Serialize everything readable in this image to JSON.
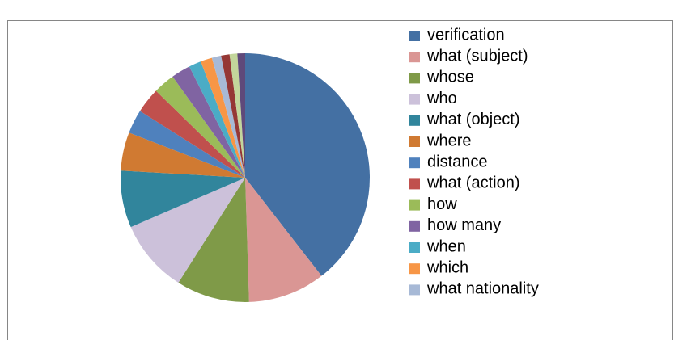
{
  "chart_data": {
    "type": "pie",
    "categories": [
      "verification",
      "what (subject)",
      "whose",
      "who",
      "what (object)",
      "where",
      "distance",
      "what (action)",
      "how",
      "how many",
      "when",
      "which",
      "what nationality",
      null,
      null,
      null
    ],
    "values": [
      39.5,
      10,
      9.5,
      9.5,
      7.4,
      5,
      3.1,
      3.3,
      2.8,
      2.5,
      1.6,
      1.5,
      1.2,
      1.1,
      1.0,
      1.0
    ],
    "colors": [
      "#4470a3",
      "#da9694",
      "#7f9a48",
      "#ccc1da",
      "#31859c",
      "#d07a32",
      "#4f81bd",
      "#c0504d",
      "#9bbb59",
      "#8064a2",
      "#4bacc6",
      "#f79646",
      "#a7b9d6",
      "#953735",
      "#c3d69b",
      "#5f497a"
    ]
  }
}
